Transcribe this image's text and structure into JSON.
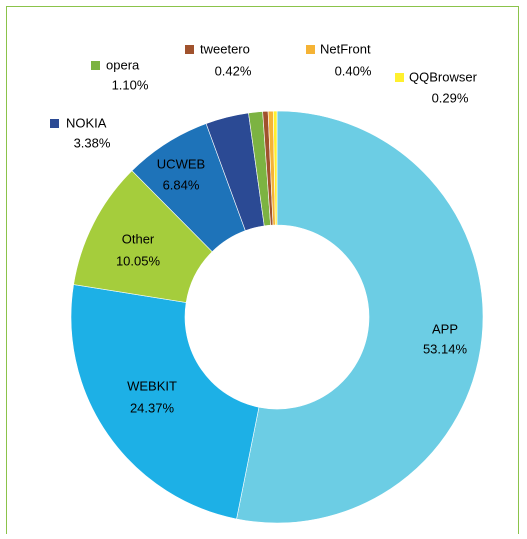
{
  "chart_data": {
    "type": "donut",
    "categories": [
      "APP",
      "WEBKIT",
      "Other",
      "UCWEB",
      "NOKIA",
      "opera",
      "tweetero",
      "NetFront",
      "QQBrowser"
    ],
    "values": [
      53.14,
      24.37,
      10.05,
      6.84,
      3.38,
      1.1,
      0.42,
      0.4,
      0.29
    ],
    "value_labels": [
      "53.14%",
      "24.37%",
      "10.05%",
      "6.84%",
      "3.38%",
      "1.10%",
      "0.42%",
      "0.40%",
      "0.29%"
    ],
    "colors": [
      "#6ccde4",
      "#1db0e6",
      "#a5cd3c",
      "#1e73b9",
      "#2b4a94",
      "#7cb342",
      "#a0522d",
      "#f5b335",
      "#fff02e"
    ]
  }
}
